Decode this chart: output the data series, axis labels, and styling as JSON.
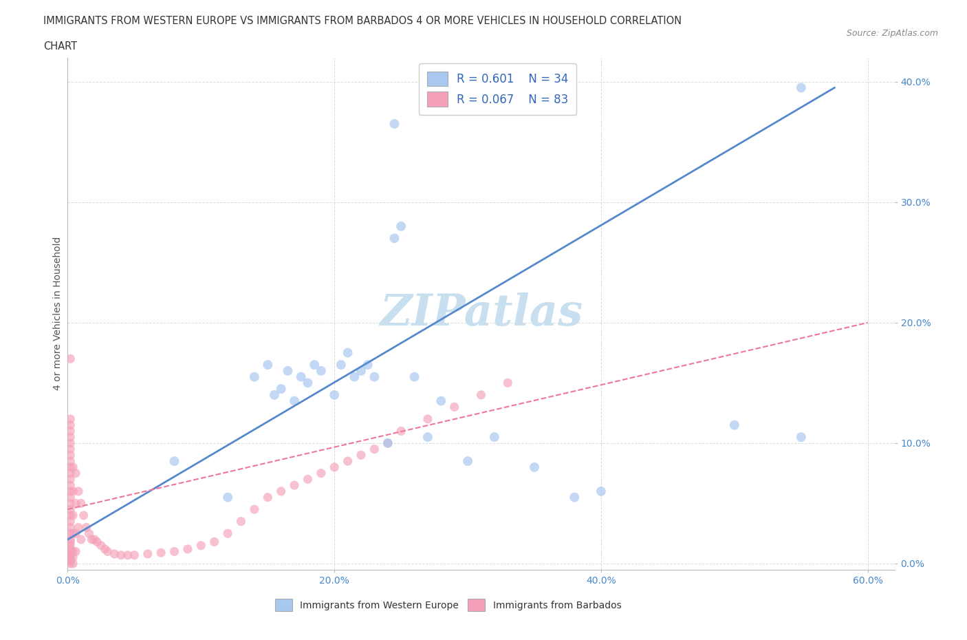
{
  "title_line1": "IMMIGRANTS FROM WESTERN EUROPE VS IMMIGRANTS FROM BARBADOS 4 OR MORE VEHICLES IN HOUSEHOLD CORRELATION",
  "title_line2": "CHART",
  "source_text": "Source: ZipAtlas.com",
  "ylabel": "4 or more Vehicles in Household",
  "xlim": [
    0.0,
    0.62
  ],
  "ylim": [
    -0.005,
    0.42
  ],
  "xtick_values": [
    0.0,
    0.2,
    0.4,
    0.6
  ],
  "xtick_labels": [
    "0.0%",
    "20.0%",
    "40.0%",
    "60.0%"
  ],
  "ytick_values": [
    0.0,
    0.1,
    0.2,
    0.3,
    0.4
  ],
  "ytick_labels": [
    "0.0%",
    "10.0%",
    "20.0%",
    "30.0%",
    "40.0%"
  ],
  "R_western": 0.601,
  "N_western": 34,
  "R_barbados": 0.067,
  "N_barbados": 83,
  "color_western": "#a8c8f0",
  "color_barbados": "#f5a0b8",
  "line_color_western": "#5588cc",
  "line_color_barbados": "#ee7799",
  "legend_text_color": "#3366bb",
  "watermark_color": "#c8dff0",
  "background_color": "#ffffff",
  "grid_color": "#cccccc",
  "title_color": "#333333",
  "source_color": "#888888",
  "tick_color": "#4488cc",
  "ylabel_color": "#555555",
  "bottom_legend_color": "#333333",
  "western_scatter_x": [
    0.08,
    0.12,
    0.14,
    0.15,
    0.155,
    0.16,
    0.165,
    0.17,
    0.175,
    0.18,
    0.185,
    0.19,
    0.2,
    0.205,
    0.21,
    0.215,
    0.22,
    0.225,
    0.23,
    0.24,
    0.245,
    0.25,
    0.26,
    0.27,
    0.28,
    0.3,
    0.32,
    0.35,
    0.38,
    0.4,
    0.245,
    0.5,
    0.55,
    0.55
  ],
  "western_scatter_y": [
    0.085,
    0.055,
    0.155,
    0.165,
    0.14,
    0.145,
    0.16,
    0.135,
    0.155,
    0.15,
    0.165,
    0.16,
    0.14,
    0.165,
    0.175,
    0.155,
    0.16,
    0.165,
    0.155,
    0.1,
    0.27,
    0.28,
    0.155,
    0.105,
    0.135,
    0.085,
    0.105,
    0.08,
    0.055,
    0.06,
    0.365,
    0.115,
    0.105,
    0.395
  ],
  "barbados_scatter_x": [
    0.002,
    0.002,
    0.002,
    0.002,
    0.002,
    0.002,
    0.002,
    0.002,
    0.002,
    0.002,
    0.002,
    0.002,
    0.002,
    0.002,
    0.002,
    0.002,
    0.002,
    0.002,
    0.002,
    0.002,
    0.002,
    0.002,
    0.002,
    0.002,
    0.002,
    0.002,
    0.002,
    0.002,
    0.002,
    0.002,
    0.004,
    0.004,
    0.004,
    0.004,
    0.004,
    0.004,
    0.004,
    0.006,
    0.006,
    0.006,
    0.006,
    0.008,
    0.008,
    0.01,
    0.01,
    0.012,
    0.014,
    0.016,
    0.018,
    0.02,
    0.022,
    0.025,
    0.028,
    0.03,
    0.035,
    0.04,
    0.045,
    0.05,
    0.06,
    0.07,
    0.08,
    0.09,
    0.1,
    0.11,
    0.12,
    0.13,
    0.14,
    0.15,
    0.16,
    0.17,
    0.18,
    0.19,
    0.2,
    0.21,
    0.22,
    0.23,
    0.24,
    0.25,
    0.27,
    0.29,
    0.31,
    0.33,
    0.002
  ],
  "barbados_scatter_y": [
    0.0,
    0.002,
    0.004,
    0.006,
    0.008,
    0.01,
    0.012,
    0.015,
    0.018,
    0.02,
    0.025,
    0.03,
    0.035,
    0.04,
    0.045,
    0.05,
    0.055,
    0.06,
    0.065,
    0.07,
    0.075,
    0.08,
    0.085,
    0.09,
    0.095,
    0.1,
    0.105,
    0.11,
    0.115,
    0.12,
    0.08,
    0.06,
    0.04,
    0.025,
    0.01,
    0.005,
    0.0,
    0.075,
    0.05,
    0.025,
    0.01,
    0.06,
    0.03,
    0.05,
    0.02,
    0.04,
    0.03,
    0.025,
    0.02,
    0.02,
    0.018,
    0.015,
    0.012,
    0.01,
    0.008,
    0.007,
    0.007,
    0.007,
    0.008,
    0.009,
    0.01,
    0.012,
    0.015,
    0.018,
    0.025,
    0.035,
    0.045,
    0.055,
    0.06,
    0.065,
    0.07,
    0.075,
    0.08,
    0.085,
    0.09,
    0.095,
    0.1,
    0.11,
    0.12,
    0.13,
    0.14,
    0.15,
    0.17
  ],
  "western_line_x": [
    0.0,
    0.575
  ],
  "western_line_y": [
    0.02,
    0.395
  ],
  "barbados_line_x": [
    0.0,
    0.6
  ],
  "barbados_line_y": [
    0.045,
    0.2
  ]
}
